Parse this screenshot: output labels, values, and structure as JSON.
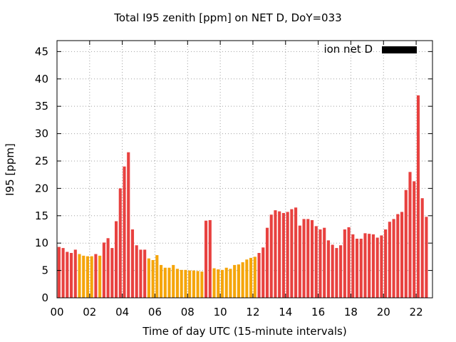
{
  "chart_data": {
    "type": "bar",
    "title": "Total I95 zenith [ppm] on NET D, DoY=033",
    "xlabel": "Time of day UTC (15-minute intervals)",
    "ylabel": "I95 [ppm]",
    "legend": {
      "label": "ion net D",
      "placement": "top-right",
      "color": "#000000"
    },
    "grid": true,
    "xlim": [
      0,
      23
    ],
    "ylim": [
      0,
      47
    ],
    "x_ticks": [
      "00",
      "02",
      "04",
      "06",
      "08",
      "10",
      "12",
      "14",
      "16",
      "18",
      "20",
      "22"
    ],
    "y_ticks": [
      "0",
      "5",
      "10",
      "15",
      "20",
      "25",
      "30",
      "35",
      "40",
      "45"
    ],
    "colors": {
      "red": "#e8413f",
      "orange": "#f5a50a"
    },
    "interval_hours": 0.25,
    "values": [
      9.3,
      9.1,
      8.4,
      8.2,
      8.8,
      8.0,
      7.7,
      7.6,
      7.6,
      8.0,
      7.7,
      10.1,
      10.9,
      9.1,
      14.0,
      20.0,
      24.0,
      26.6,
      12.5,
      9.6,
      8.8,
      8.8,
      7.2,
      6.9,
      7.8,
      6.0,
      5.5,
      5.5,
      6.0,
      5.3,
      5.1,
      5.1,
      5.0,
      5.0,
      4.9,
      4.8,
      14.1,
      14.2,
      5.4,
      5.2,
      5.1,
      5.5,
      5.3,
      6.0,
      6.1,
      6.5,
      7.0,
      7.3,
      7.5,
      8.2,
      9.2,
      12.8,
      15.2,
      16.0,
      15.8,
      15.5,
      15.7,
      16.2,
      16.5,
      13.2,
      14.4,
      14.4,
      14.2,
      13.1,
      12.5,
      12.8,
      10.5,
      9.7,
      9.1,
      9.6,
      12.5,
      12.9,
      11.6,
      10.8,
      10.8,
      11.8,
      11.7,
      11.6,
      11.0,
      11.4,
      12.5,
      13.9,
      14.4,
      15.3,
      15.7,
      19.7,
      23.0,
      21.3,
      37.0,
      18.2,
      14.8
    ],
    "bar_colors": [
      "red",
      "red",
      "red",
      "red",
      "red",
      "orange",
      "orange",
      "orange",
      "orange",
      "red",
      "orange",
      "red",
      "red",
      "red",
      "red",
      "red",
      "red",
      "red",
      "red",
      "red",
      "red",
      "red",
      "orange",
      "orange",
      "orange",
      "orange",
      "orange",
      "orange",
      "orange",
      "orange",
      "orange",
      "orange",
      "orange",
      "orange",
      "orange",
      "orange",
      "red",
      "red",
      "orange",
      "orange",
      "orange",
      "orange",
      "orange",
      "orange",
      "orange",
      "orange",
      "orange",
      "orange",
      "orange",
      "red",
      "red",
      "red",
      "red",
      "red",
      "red",
      "red",
      "red",
      "red",
      "red",
      "red",
      "red",
      "red",
      "red",
      "red",
      "red",
      "red",
      "red",
      "red",
      "red",
      "red",
      "red",
      "red",
      "red",
      "red",
      "red",
      "red",
      "red",
      "red",
      "red",
      "red",
      "red",
      "red",
      "red",
      "red",
      "red",
      "red",
      "red",
      "red",
      "red",
      "red",
      "red"
    ]
  }
}
